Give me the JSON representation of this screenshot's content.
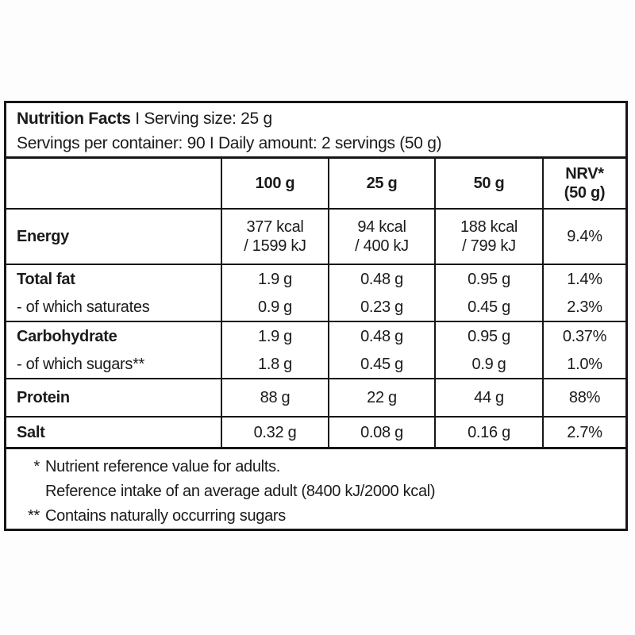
{
  "page": {
    "background_color": "#fdfdfd",
    "table_background_color": "#ffffff",
    "border_color": "#161616",
    "text_color": "#1b1b1b"
  },
  "header": {
    "title": "Nutrition Facts",
    "divider": "I",
    "serving_size": "Serving size: 25 g",
    "line2": "Servings per container: 90 I Daily amount: 2 servings (50 g)"
  },
  "table": {
    "columns": [
      "100 g",
      "25 g",
      "50 g",
      "NRV*\n(50 g)"
    ],
    "rows": [
      {
        "label": "Energy",
        "values": [
          "377 kcal\n/ 1599 kJ",
          "94 kcal\n/ 400 kJ",
          "188 kcal\n/ 799 kJ",
          "9.4%"
        ]
      },
      {
        "label": "Total fat",
        "values": [
          "1.9 g",
          "0.48 g",
          "0.95 g",
          "1.4%"
        ]
      },
      {
        "label": "- of which saturates",
        "values": [
          "0.9 g",
          "0.23 g",
          "0.45 g",
          "2.3%"
        ]
      },
      {
        "label": "Carbohydrate",
        "values": [
          "1.9 g",
          "0.48 g",
          "0.95 g",
          "0.37%"
        ]
      },
      {
        "label": "- of which sugars**",
        "values": [
          "1.8 g",
          "0.45 g",
          "0.9 g",
          "1.0%"
        ]
      },
      {
        "label": "Protein",
        "values": [
          "88 g",
          "22 g",
          "44 g",
          "88%"
        ]
      },
      {
        "label": "Salt",
        "values": [
          "0.32 g",
          "0.08 g",
          "0.16 g",
          "2.7%"
        ]
      }
    ]
  },
  "footnotes": [
    {
      "marker": "*",
      "text": "Nutrient reference value for adults.\nReference intake of an average adult (8400 kJ/2000 kcal)"
    },
    {
      "marker": "**",
      "text": "Contains naturally occurring sugars"
    }
  ]
}
